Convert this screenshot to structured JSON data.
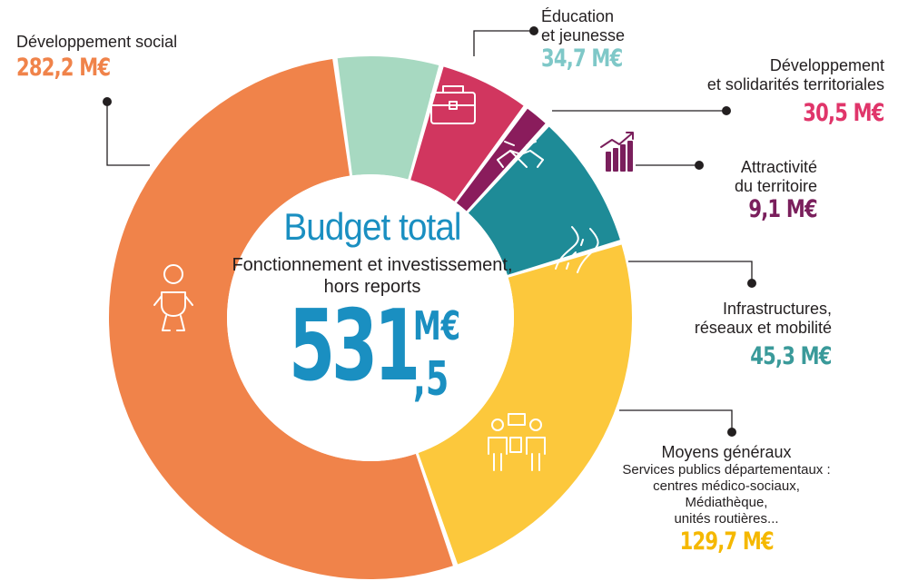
{
  "chart_data": {
    "type": "pie",
    "title": "Budget total",
    "subtitle": "Fonctionnement et investissement, hors reports",
    "total_value": "531",
    "total_unit": "M€",
    "total_decimal": ",5",
    "slices": [
      {
        "label": "Développement social",
        "value": 282.2,
        "value_label": "282,2 M€",
        "color": "#f0834a",
        "icon": "baby-icon"
      },
      {
        "label": "Éducation et jeunesse",
        "label_lines": [
          "Éducation",
          "et jeunesse"
        ],
        "value": 34.7,
        "value_label": "34,7 M€",
        "color": "#a7d9c1",
        "value_color": "#7fc8c8",
        "icon": "briefcase-icon"
      },
      {
        "label": "Développement et solidarités territoriales",
        "label_lines": [
          "Développement",
          "et solidarités territoriales"
        ],
        "value": 30.5,
        "value_label": "30,5 M€",
        "color": "#d1365f",
        "value_color": "#e0356a",
        "icon": "handshake-icon"
      },
      {
        "label": "Attractivité du territoire",
        "label_lines": [
          "Attractivité",
          "du territoire"
        ],
        "value": 9.1,
        "value_label": "9,1 M€",
        "color": "#8a1c5c",
        "value_color": "#7a1f5c",
        "icon": "growth-chart-icon"
      },
      {
        "label": "Infrastructures, réseaux et mobilité",
        "label_lines": [
          "Infrastructures,",
          "réseaux et mobilité"
        ],
        "value": 45.3,
        "value_label": "45,3 M€",
        "color": "#1e8b97",
        "value_color": "#3a9a9a",
        "icon": "road-icon"
      },
      {
        "label": "Moyens généraux",
        "label_lines": [
          "Moyens généraux"
        ],
        "note_lines": [
          "Services publics départementaux :",
          "centres médico-sociaux,",
          "Médiathèque,",
          "unités routières..."
        ],
        "value": 129.7,
        "value_label": "129,7 M€",
        "color": "#fcc83c",
        "value_color": "#f5b800",
        "icon": "meeting-icon"
      }
    ]
  }
}
